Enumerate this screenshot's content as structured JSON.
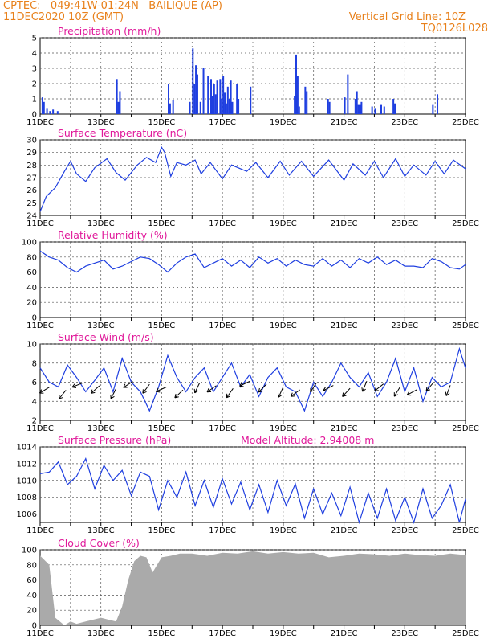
{
  "header": {
    "line1": "CPTEC:   049:41W-01:24N   BAILIQUE (AP)",
    "line2": "11DEC2020 10Z (GMT)",
    "right1": "Vertical Grid Line: 10Z",
    "right2": "TQ0126L028"
  },
  "colors": {
    "header": "#e8801a",
    "title": "#e0199a",
    "line": "#1f3fe0",
    "cloud": "#aaaaaa",
    "arrow": "#000000"
  },
  "x_labels": [
    "11DEC",
    "13DEC",
    "15DEC",
    "17DEC",
    "19DEC",
    "21DEC",
    "23DEC",
    "25DEC"
  ],
  "chart_data": [
    {
      "type": "bar",
      "title": "Precipitation (mm/h)",
      "ylim": [
        0,
        5
      ],
      "yticks": [
        "0",
        "1",
        "2",
        "3",
        "4",
        "5"
      ],
      "x": [
        0.05,
        0.1,
        0.2,
        0.3,
        0.4,
        0.55,
        2.5,
        2.55,
        2.6,
        4.2,
        4.25,
        4.35,
        4.9,
        5.0,
        5.05,
        5.1,
        5.15,
        5.25,
        5.35,
        5.5,
        5.6,
        5.65,
        5.7,
        5.75,
        5.8,
        5.9,
        5.95,
        6.0,
        6.05,
        6.1,
        6.15,
        6.2,
        6.25,
        6.3,
        6.45,
        6.5,
        6.9,
        8.35,
        8.4,
        8.45,
        8.5,
        8.7,
        8.75,
        9.45,
        9.5,
        10.0,
        10.1,
        10.35,
        10.4,
        10.45,
        10.5,
        10.55,
        10.9,
        11.0,
        11.2,
        11.3,
        11.6,
        11.65,
        12.9,
        13.05
      ],
      "values": [
        1.1,
        0.8,
        0.4,
        0.2,
        0.3,
        0.2,
        2.3,
        0.8,
        1.5,
        2.0,
        0.7,
        0.9,
        0.8,
        4.3,
        2.0,
        3.2,
        2.6,
        0.8,
        3.0,
        2.5,
        2.3,
        1.2,
        2.0,
        1.3,
        2.2,
        2.3,
        1.0,
        2.5,
        1.4,
        0.7,
        1.8,
        1.0,
        2.2,
        0.8,
        2.0,
        1.0,
        1.8,
        1.2,
        3.9,
        2.5,
        0.5,
        1.8,
        1.5,
        1.0,
        0.8,
        1.1,
        2.6,
        1.0,
        1.5,
        0.6,
        0.6,
        0.8,
        0.5,
        0.4,
        0.6,
        0.5,
        1.0,
        0.7,
        0.6,
        1.3
      ],
      "color": "#1f3fe0"
    },
    {
      "type": "line",
      "title": "Surface Temperature (nC)",
      "ylim": [
        24,
        30
      ],
      "yticks": [
        "24",
        "25",
        "26",
        "27",
        "28",
        "29",
        "30"
      ],
      "x": [
        0,
        0.2,
        0.5,
        0.8,
        1.0,
        1.2,
        1.5,
        1.8,
        2.2,
        2.5,
        2.8,
        3.2,
        3.5,
        3.8,
        4.0,
        4.1,
        4.3,
        4.5,
        4.8,
        5.1,
        5.3,
        5.6,
        6.0,
        6.3,
        6.8,
        7.1,
        7.5,
        7.9,
        8.2,
        8.6,
        9.0,
        9.5,
        10.0,
        10.3,
        10.7,
        11.0,
        11.3,
        11.7,
        12.0,
        12.3,
        12.7,
        13.0,
        13.3,
        13.6,
        14.0
      ],
      "y": [
        24.3,
        25.5,
        26.2,
        27.5,
        28.3,
        27.3,
        26.7,
        27.8,
        28.5,
        27.4,
        26.8,
        28.0,
        28.6,
        28.2,
        29.4,
        29.0,
        27.1,
        28.2,
        28.0,
        28.4,
        27.3,
        28.2,
        26.9,
        28.0,
        27.5,
        28.2,
        27.0,
        28.3,
        27.2,
        28.3,
        27.1,
        28.4,
        26.8,
        28.1,
        27.2,
        28.3,
        27.0,
        28.5,
        27.1,
        28.0,
        27.2,
        28.3,
        27.3,
        28.4,
        27.7
      ],
      "color": "#1f3fe0"
    },
    {
      "type": "line",
      "title": "Relative Humidity (%)",
      "ylim": [
        0,
        100
      ],
      "yticks": [
        "0",
        "20",
        "40",
        "60",
        "80",
        "100"
      ],
      "x": [
        0,
        0.3,
        0.6,
        0.9,
        1.2,
        1.5,
        1.8,
        2.1,
        2.4,
        2.7,
        3.0,
        3.3,
        3.6,
        3.9,
        4.2,
        4.5,
        4.8,
        5.1,
        5.4,
        5.7,
        6.0,
        6.3,
        6.6,
        6.9,
        7.2,
        7.5,
        7.8,
        8.1,
        8.4,
        8.7,
        9.0,
        9.3,
        9.6,
        9.9,
        10.2,
        10.5,
        10.8,
        11.1,
        11.4,
        11.7,
        12.0,
        12.3,
        12.6,
        12.9,
        13.2,
        13.5,
        13.8,
        14.0
      ],
      "y": [
        88,
        80,
        76,
        66,
        60,
        68,
        72,
        76,
        64,
        68,
        74,
        80,
        78,
        70,
        60,
        72,
        80,
        84,
        66,
        72,
        78,
        68,
        76,
        66,
        80,
        72,
        78,
        68,
        76,
        70,
        68,
        78,
        68,
        76,
        66,
        78,
        72,
        80,
        70,
        76,
        68,
        68,
        66,
        78,
        74,
        66,
        64,
        70
      ],
      "color": "#1f3fe0"
    },
    {
      "type": "line",
      "title": "Surface Wind (m/s)",
      "ylim": [
        2,
        10
      ],
      "yticks": [
        "2",
        "4",
        "6",
        "8",
        "10"
      ],
      "x": [
        0,
        0.3,
        0.6,
        0.9,
        1.2,
        1.5,
        1.8,
        2.1,
        2.4,
        2.7,
        3.0,
        3.3,
        3.6,
        3.9,
        4.2,
        4.5,
        4.8,
        5.1,
        5.4,
        5.7,
        6.0,
        6.3,
        6.6,
        6.9,
        7.2,
        7.5,
        7.8,
        8.1,
        8.4,
        8.7,
        9.0,
        9.3,
        9.6,
        9.9,
        10.2,
        10.5,
        10.8,
        11.1,
        11.4,
        11.7,
        12.0,
        12.3,
        12.6,
        12.9,
        13.2,
        13.5,
        13.8,
        14.0
      ],
      "y": [
        7.5,
        6.0,
        5.5,
        7.8,
        6.5,
        5.0,
        6.2,
        7.5,
        5.0,
        8.5,
        6.0,
        5.0,
        3.0,
        5.5,
        8.8,
        6.5,
        5.0,
        6.5,
        7.5,
        5.0,
        6.5,
        8.0,
        5.5,
        6.8,
        4.5,
        6.5,
        7.5,
        5.5,
        5.0,
        3.0,
        6.0,
        4.5,
        6.0,
        8.0,
        6.5,
        5.5,
        7.0,
        4.5,
        6.0,
        8.5,
        5.0,
        7.5,
        4.0,
        6.5,
        5.5,
        6.0,
        9.5,
        7.5
      ],
      "color": "#1f3fe0",
      "arrows_note": "wind barb arrows"
    },
    {
      "type": "line",
      "title": "Surface Pressure (hPa)",
      "annotation": "Model Altitude: 2.94008 m",
      "ylim": [
        1005,
        1014
      ],
      "yticks": [
        "1006",
        "1008",
        "1010",
        "1012",
        "1014"
      ],
      "x": [
        0,
        0.3,
        0.6,
        0.9,
        1.2,
        1.5,
        1.8,
        2.1,
        2.4,
        2.7,
        3.0,
        3.3,
        3.6,
        3.9,
        4.2,
        4.5,
        4.8,
        5.1,
        5.4,
        5.7,
        6.0,
        6.3,
        6.6,
        6.9,
        7.2,
        7.5,
        7.8,
        8.1,
        8.4,
        8.7,
        9.0,
        9.3,
        9.6,
        9.9,
        10.2,
        10.5,
        10.8,
        11.1,
        11.4,
        11.7,
        12.0,
        12.3,
        12.6,
        12.9,
        13.2,
        13.5,
        13.8,
        14.0
      ],
      "y": [
        1010.8,
        1011.0,
        1012.2,
        1009.5,
        1010.5,
        1012.6,
        1009.0,
        1011.8,
        1010.0,
        1011.2,
        1008.2,
        1011.0,
        1010.5,
        1006.5,
        1010.0,
        1008.0,
        1011.0,
        1007.0,
        1010.0,
        1006.8,
        1010.2,
        1007.2,
        1009.8,
        1006.5,
        1009.5,
        1006.2,
        1010.0,
        1007.0,
        1009.6,
        1005.5,
        1009.0,
        1006.0,
        1008.5,
        1005.8,
        1009.2,
        1005.0,
        1008.5,
        1005.5,
        1009.0,
        1005.2,
        1008.0,
        1005.0,
        1009.0,
        1005.5,
        1007.0,
        1009.5,
        1005.0,
        1007.8
      ],
      "color": "#1f3fe0"
    },
    {
      "type": "area",
      "title": "Cloud Cover (%)",
      "ylim": [
        0,
        100
      ],
      "yticks": [
        "0",
        "20",
        "40",
        "60",
        "80",
        "100"
      ],
      "x": [
        0,
        0.3,
        0.5,
        0.8,
        1.0,
        1.2,
        1.5,
        1.8,
        2.0,
        2.2,
        2.5,
        2.7,
        2.9,
        3.1,
        3.3,
        3.5,
        3.7,
        4.0,
        4.3,
        4.6,
        5.0,
        5.5,
        6.0,
        6.5,
        7.0,
        7.5,
        8.0,
        8.5,
        9.0,
        9.5,
        10.0,
        10.5,
        11.0,
        11.5,
        12.0,
        12.5,
        13.0,
        13.5,
        14.0
      ],
      "y": [
        92,
        80,
        10,
        0,
        5,
        2,
        5,
        8,
        10,
        8,
        5,
        25,
        60,
        85,
        92,
        90,
        70,
        90,
        92,
        95,
        95,
        92,
        96,
        95,
        98,
        95,
        97,
        95,
        96,
        90,
        92,
        95,
        94,
        92,
        95,
        93,
        92,
        95,
        93
      ],
      "color": "#aaaaaa"
    }
  ]
}
